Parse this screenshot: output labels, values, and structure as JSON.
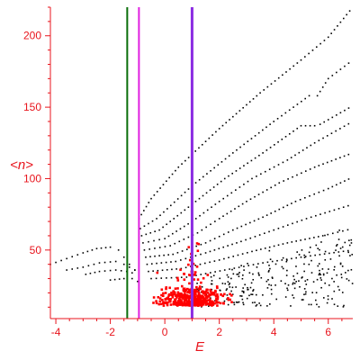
{
  "chart_data": {
    "type": "scatter",
    "xlabel": "E",
    "ylabel": "<n>",
    "xlim": [
      -4.2,
      6.9
    ],
    "ylim": [
      2,
      220
    ],
    "x_ticks": [
      -4,
      -2,
      0,
      2,
      4,
      6
    ],
    "y_ticks": [
      50,
      100,
      150,
      200
    ],
    "x_tick_labels": [
      "-4",
      "-2",
      "0",
      "2",
      "4",
      "6"
    ],
    "y_tick_labels": [
      "50",
      "100",
      "150",
      "200"
    ],
    "grid": false,
    "legend": "none",
    "colors": {
      "axis": "#e8141c",
      "points_black": "#000000",
      "points_red": "#ff0000",
      "vline_green": "#0a6e0a",
      "vline_magenta": "#e020e0",
      "vline_purple": "#8a2be2"
    },
    "vertical_lines": [
      {
        "x": -1.38,
        "color": "#0a6e0a"
      },
      {
        "x": -0.95,
        "color": "#e020e0"
      },
      {
        "x": 1.0,
        "color": "#8a2be2"
      }
    ],
    "curves": [
      {
        "x": [
          -0.95,
          -0.5,
          0.5,
          2.0,
          3.5,
          5.0,
          6.0,
          6.9
        ],
        "y": [
          72,
          86,
          108,
          135,
          160,
          183,
          199,
          220
        ]
      },
      {
        "x": [
          -0.9,
          -0.3,
          1.0,
          2.5,
          4.0,
          5.3,
          5.6,
          6.0,
          6.9
        ],
        "y": [
          65,
          72,
          95,
          118,
          140,
          158,
          158,
          170,
          183
        ]
      },
      {
        "x": [
          -0.85,
          -0.2,
          1.0,
          2.2,
          3.6,
          5.0,
          5.5,
          5.7,
          6.9
        ],
        "y": [
          60,
          64,
          82,
          100,
          118,
          137,
          137,
          138,
          151
        ]
      },
      {
        "x": [
          -0.8,
          0.0,
          1.0,
          2.0,
          3.2,
          4.5,
          5.5,
          6.9
        ],
        "y": [
          55,
          58,
          70,
          84,
          100,
          113,
          125,
          140
        ]
      },
      {
        "x": [
          -0.75,
          0.2,
          1.2,
          2.0,
          3.0,
          4.2,
          5.5,
          6.9
        ],
        "y": [
          50,
          53,
          62,
          72,
          84,
          97,
          108,
          118
        ]
      },
      {
        "x": [
          -0.7,
          0.3,
          1.5,
          2.5,
          3.6,
          4.8,
          6.0,
          6.9
        ],
        "y": [
          45,
          47,
          55,
          64,
          73,
          84,
          93,
          101
        ]
      },
      {
        "x": [
          -0.65,
          0.4,
          1.5,
          2.8,
          4.0,
          5.2,
          6.9
        ],
        "y": [
          40,
          42,
          48,
          56,
          64,
          72,
          82
        ]
      },
      {
        "x": [
          -0.6,
          0.6,
          2.0,
          3.2,
          4.5,
          5.8,
          6.9
        ],
        "y": [
          35,
          37,
          43,
          49,
          55,
          60,
          65
        ]
      },
      {
        "x": [
          -0.5,
          0.8,
          2.2,
          3.6,
          5.0,
          6.9
        ],
        "y": [
          30,
          31,
          36,
          41,
          45,
          50
        ]
      },
      {
        "x": [
          -4.2,
          -3.6,
          -3.0,
          -2.5,
          -2.0,
          -1.7,
          -1.5,
          -1.3,
          -1.1,
          -0.95
        ],
        "y": [
          40,
          44,
          48,
          51,
          52,
          50,
          45,
          40,
          36,
          33
        ]
      },
      {
        "x": [
          -3.6,
          -3.0,
          -2.4,
          -1.8,
          -1.5,
          -1.3,
          -1.1,
          -0.95
        ],
        "y": [
          36,
          38,
          41,
          42,
          40,
          38,
          36,
          34
        ]
      },
      {
        "x": [
          -2.9,
          -2.4,
          -1.8,
          -1.4,
          -1.2,
          -1.0
        ],
        "y": [
          33,
          35,
          36,
          35,
          34,
          32
        ]
      },
      {
        "x": [
          -2.0,
          -1.5,
          -1.2,
          -1.0,
          -0.8
        ],
        "y": [
          29,
          30,
          30,
          28,
          26
        ]
      }
    ],
    "red_cluster": {
      "x_range": [
        -0.6,
        2.6
      ],
      "y_range": [
        4,
        35
      ],
      "center": [
        1.0,
        14
      ]
    },
    "black_scatter": {
      "x_range": [
        1.0,
        6.9
      ],
      "y_range": [
        10,
        50
      ]
    }
  }
}
